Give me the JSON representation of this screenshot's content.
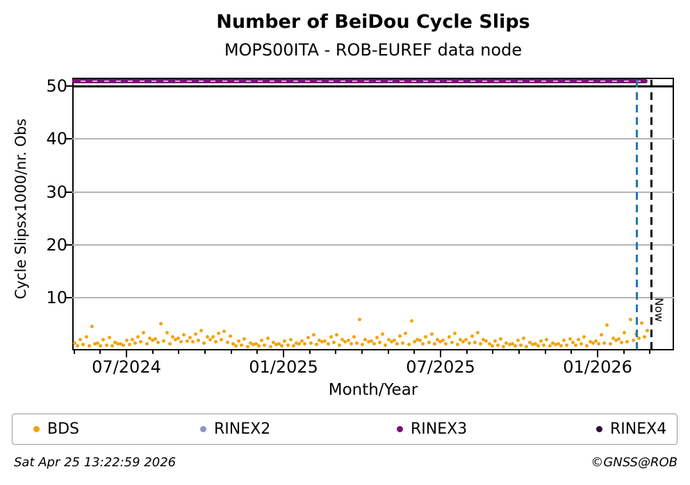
{
  "header": {
    "title": "Number of BeiDou Cycle Slips",
    "subtitle": "MOPS00ITA - ROB-EUREF data node"
  },
  "chart": {
    "ylabel": "Cycle Slipsx1000/nr. Obs",
    "xlabel": "Month/Year",
    "ytick_labels": [
      "50",
      "40",
      "30",
      "20",
      "10"
    ],
    "xtick_labels": [
      "07/2024",
      "01/2025",
      "07/2025",
      "01/2026"
    ],
    "now_label": "Now"
  },
  "colors": {
    "bds": "#f2a30f",
    "rinex2": "#9193cf",
    "rinex3": "#7b0f7b",
    "rinex4": "#2d0f35",
    "grid": "#b3b3b3",
    "reference_line": "#000000",
    "latest_data_line": "#1f77b4",
    "now_line": "#000000"
  },
  "legend": {
    "items": [
      {
        "label": "BDS",
        "color": "#f2a30f"
      },
      {
        "label": "RINEX2",
        "color": "#9193cf"
      },
      {
        "label": "RINEX3",
        "color": "#7b0f7b"
      },
      {
        "label": "RINEX4",
        "color": "#2d0f35"
      }
    ]
  },
  "footer": {
    "timestamp": "Sat Apr 25 13:22:59 2026",
    "credit": "©GNSS@ROB"
  },
  "chart_data": {
    "type": "scatter",
    "title": "Number of BeiDou Cycle Slips",
    "subtitle": "MOPS00ITA - ROB-EUREF data node",
    "xlabel": "Month/Year",
    "ylabel": "Cycle Slipsx1000/nr. Obs",
    "ylim": [
      0,
      51.6
    ],
    "yticks": [
      10,
      20,
      30,
      40,
      50
    ],
    "xtick_labels": [
      "07/2024",
      "01/2025",
      "07/2025",
      "01/2026"
    ],
    "grid": "horizontal light-gray lines at labeled y ticks",
    "legend_position": "bottom",
    "annotations": {
      "now_label": "Now",
      "now_line": {
        "style": "dashed",
        "color": "#000000",
        "x_frac": 0.962
      },
      "latest_data_line": {
        "style": "dashed",
        "color": "#1f77b4",
        "x_frac": 0.938
      },
      "black_reference_line_y": 50
    },
    "series": [
      {
        "name": "BDS",
        "type": "scatter",
        "color": "#f2a30f",
        "x_start_frac": 0.004,
        "x_end_frac": 0.956,
        "units": "cycle slips x1000 / nr. obs",
        "values": [
          1.4,
          0.9,
          2.0,
          1.1,
          2.6,
          0.8,
          4.5,
          1.3,
          1.4,
          0.9,
          2.1,
          1.0,
          2.4,
          0.8,
          1.5,
          1.2,
          1.3,
          1.0,
          1.9,
          1.1,
          2.1,
          1.4,
          2.6,
          1.7,
          3.3,
          1.2,
          2.3,
          1.9,
          2.2,
          1.5,
          5.0,
          1.8,
          3.4,
          1.3,
          2.5,
          2.0,
          2.3,
          1.6,
          2.9,
          1.8,
          2.4,
          1.6,
          3.1,
          1.9,
          3.8,
          1.4,
          2.6,
          2.1,
          2.5,
          1.7,
          3.2,
          2.0,
          3.6,
          1.5,
          2.7,
          1.3,
          0.9,
          1.8,
          1.0,
          2.2,
          0.7,
          1.4,
          1.1,
          1.2,
          0.8,
          1.9,
          1.0,
          2.3,
          0.7,
          1.5,
          1.1,
          1.3,
          0.9,
          1.8,
          1.0,
          2.1,
          0.8,
          1.4,
          1.2,
          1.8,
          1.2,
          2.4,
          1.4,
          2.9,
          1.1,
          1.9,
          1.6,
          1.8,
          1.2,
          2.5,
          1.5,
          3.0,
          1.0,
          2.0,
          1.7,
          1.9,
          1.3,
          2.6,
          1.4,
          5.8,
          1.1,
          2.1,
          1.6,
          1.8,
          1.2,
          2.4,
          1.5,
          3.1,
          1.0,
          2.0,
          1.6,
          1.9,
          1.3,
          2.7,
          1.4,
          3.2,
          1.1,
          5.6,
          1.7,
          2.0,
          1.9,
          1.3,
          2.5,
          1.5,
          3.1,
          1.2,
          2.0,
          1.7,
          1.9,
          1.3,
          2.6,
          1.5,
          3.2,
          1.1,
          2.1,
          1.7,
          2.0,
          1.4,
          2.7,
          1.5,
          3.3,
          1.2,
          2.1,
          1.8,
          1.3,
          0.9,
          1.8,
          1.0,
          2.2,
          0.7,
          1.4,
          1.1,
          1.2,
          0.8,
          1.9,
          1.0,
          2.3,
          0.7,
          1.5,
          1.1,
          1.3,
          0.9,
          1.8,
          1.0,
          2.1,
          0.8,
          1.4,
          1.1,
          1.2,
          0.9,
          1.9,
          1.0,
          2.2,
          1.5,
          1.0,
          2.1,
          1.2,
          2.6,
          0.9,
          1.7,
          1.4,
          1.8,
          1.2,
          2.9,
          1.4,
          4.8,
          1.3,
          2.3,
          1.9,
          2.2,
          1.5,
          3.4,
          1.7,
          5.9,
          1.9,
          3.1,
          2.3,
          5.2,
          2.6,
          3.8
        ]
      },
      {
        "name": "RINEX2",
        "type": "scatter",
        "color": "#9193cf",
        "values": [],
        "note": "no separate visible points; light dashes appear inside the RINEX3 band"
      },
      {
        "name": "RINEX3",
        "type": "scatter",
        "color": "#7b0f7b",
        "constant_value": 51,
        "x_start_frac": 0.0,
        "x_end_frac": 0.956,
        "note": "dense horizontal band of daily points at y ~= 51"
      },
      {
        "name": "RINEX4",
        "type": "scatter",
        "color": "#2d0f35",
        "values": [],
        "note": "no separate visible points"
      }
    ]
  }
}
